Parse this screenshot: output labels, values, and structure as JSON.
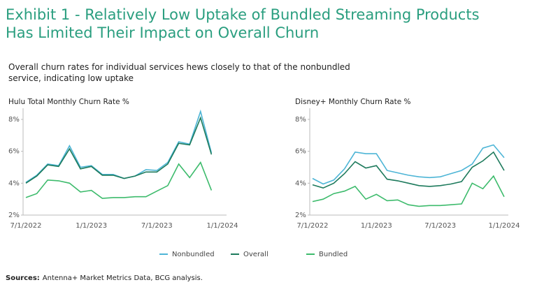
{
  "title": "Exhibit 1 - Relatively Low Uptake of Bundled Streaming Products Has Limited Their Impact on Overall Churn",
  "subtitle": "Overall churn rates for individual services hews closely to that of the nonbundled service, indicating low uptake",
  "source_label": "Sources:",
  "source": "Antenna+ Market Metrics Data, BCG analysis.",
  "chart_data": [
    {
      "type": "line",
      "title": "Hulu Total Monthly Churn Rate %",
      "categories": [
        "7/1/2022",
        null,
        null,
        null,
        null,
        null,
        "1/1/2023",
        null,
        null,
        null,
        null,
        null,
        "7/1/2023",
        null,
        null,
        null,
        null,
        null,
        "1/1/2024"
      ],
      "series": [
        {
          "name": "Nonbundled",
          "color": "#4db5d6",
          "values": [
            4.05,
            4.5,
            5.2,
            5.1,
            6.35,
            5.0,
            5.1,
            4.55,
            4.55,
            4.3,
            4.45,
            4.85,
            4.8,
            5.3,
            6.6,
            6.45,
            8.5,
            5.9,
            null
          ]
        },
        {
          "name": "Overall",
          "color": "#1d7a5c",
          "values": [
            4.0,
            4.45,
            5.15,
            5.05,
            6.15,
            4.9,
            5.05,
            4.5,
            4.5,
            4.3,
            4.45,
            4.7,
            4.7,
            5.2,
            6.5,
            6.4,
            8.1,
            5.8,
            null
          ]
        },
        {
          "name": "Bundled",
          "color": "#3dbb6c",
          "values": [
            3.1,
            3.35,
            4.2,
            4.15,
            4.0,
            3.45,
            3.55,
            3.05,
            3.1,
            3.1,
            3.15,
            3.15,
            3.5,
            3.85,
            5.2,
            4.35,
            5.3,
            3.55,
            null
          ]
        }
      ],
      "ylim": [
        2,
        8.7
      ],
      "yticks": [
        {
          "value": 2,
          "label": "2%"
        },
        {
          "value": 4,
          "label": "4%"
        },
        {
          "value": 6,
          "label": "6%"
        },
        {
          "value": 8,
          "label": "8%"
        }
      ]
    },
    {
      "type": "line",
      "title": "Disney+ Monthly Churn Rate %",
      "categories": [
        "7/1/2022",
        null,
        null,
        null,
        null,
        null,
        "1/1/2023",
        null,
        null,
        null,
        null,
        null,
        "7/1/2023",
        null,
        null,
        null,
        null,
        null,
        "1/1/2024"
      ],
      "series": [
        {
          "name": "Nonbundled",
          "color": "#4db5d6",
          "values": [
            4.3,
            3.95,
            4.2,
            4.9,
            5.95,
            5.85,
            5.85,
            4.8,
            4.65,
            4.5,
            4.4,
            4.35,
            4.4,
            4.6,
            4.8,
            5.2,
            6.2,
            6.4,
            5.6
          ]
        },
        {
          "name": "Overall",
          "color": "#1d7a5c",
          "values": [
            3.9,
            3.7,
            4.0,
            4.6,
            5.35,
            4.95,
            5.1,
            4.25,
            4.15,
            4.0,
            3.85,
            3.8,
            3.85,
            3.95,
            4.1,
            5.0,
            5.4,
            5.95,
            4.8
          ]
        },
        {
          "name": "Bundled",
          "color": "#3dbb6c",
          "values": [
            2.85,
            3.0,
            3.35,
            3.5,
            3.8,
            3.0,
            3.3,
            2.9,
            2.95,
            2.65,
            2.55,
            2.6,
            2.6,
            2.65,
            2.7,
            4.0,
            3.65,
            4.45,
            3.15
          ]
        }
      ],
      "ylim": [
        2,
        8.7
      ],
      "yticks": [
        {
          "value": 2,
          "label": "2%"
        },
        {
          "value": 4,
          "label": "4%"
        },
        {
          "value": 6,
          "label": "6%"
        },
        {
          "value": 8,
          "label": "8%"
        }
      ]
    }
  ]
}
